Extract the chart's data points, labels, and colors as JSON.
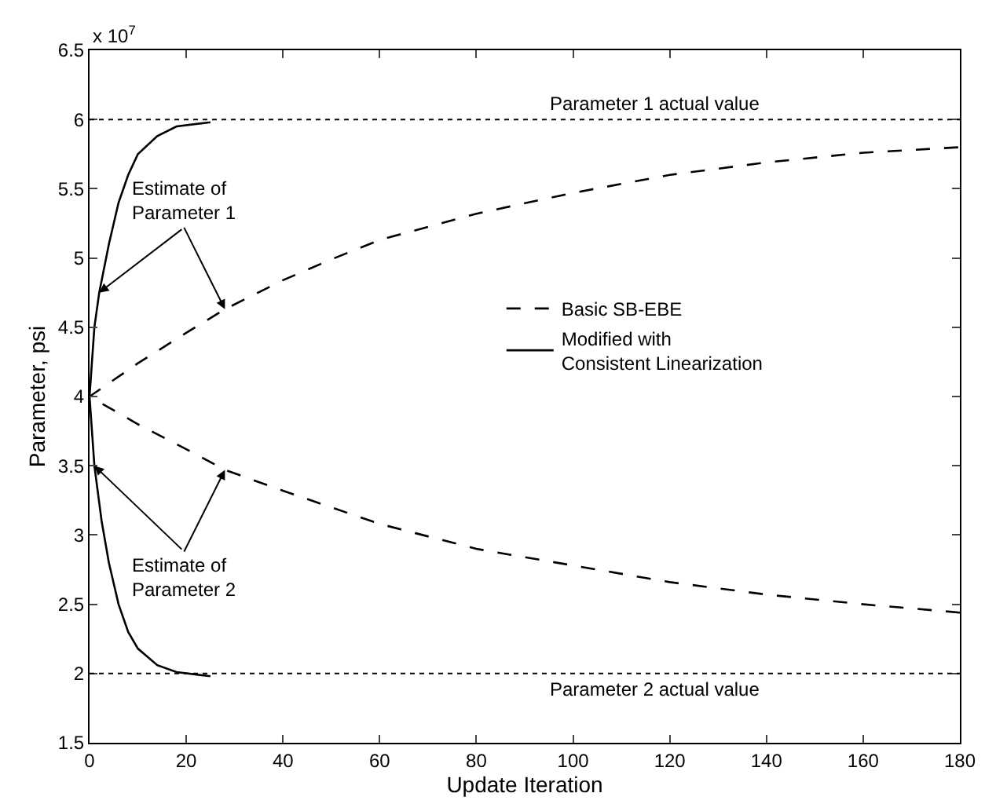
{
  "chart_data": {
    "type": "line",
    "xlabel": "Update Iteration",
    "ylabel": "Parameter, psi",
    "xlim": [
      0,
      180
    ],
    "xticks": [
      0,
      20,
      40,
      60,
      80,
      100,
      120,
      140,
      160,
      180
    ],
    "ylim": [
      1.5,
      6.5
    ],
    "yticks": [
      1.5,
      2,
      2.5,
      3,
      3.5,
      4,
      4.5,
      5,
      5.5,
      6,
      6.5
    ],
    "grid": false,
    "legend": "right",
    "series": [
      {
        "name": "Basic SB-EBE",
        "color": "#000000",
        "line_style": "dashed",
        "x": [
          180,
          160,
          140,
          120,
          100,
          80,
          60,
          40,
          28,
          20,
          10,
          0,
          10,
          20,
          28,
          40,
          50,
          60,
          80,
          100,
          120,
          140,
          160,
          180
        ],
        "values": [
          2.44,
          2.5,
          2.57,
          2.66,
          2.78,
          2.9,
          3.08,
          3.32,
          3.47,
          3.62,
          3.8,
          4,
          4.24,
          4.46,
          4.63,
          4.84,
          4.99,
          5.13,
          5.32,
          5.47,
          5.6,
          5.69,
          5.76,
          5.8
        ]
      },
      {
        "name": "Modified with\nConsistent Linearization",
        "color": "#000000",
        "line_style": "solid",
        "x": [
          25,
          18,
          14,
          10,
          8,
          6,
          4,
          2.5,
          1,
          0,
          1,
          2,
          4,
          6,
          8,
          10,
          14,
          18,
          25
        ],
        "values": [
          1.98,
          2.01,
          2.06,
          2.18,
          2.3,
          2.5,
          2.8,
          3.1,
          3.5,
          4,
          4.5,
          4.75,
          5.1,
          5.4,
          5.6,
          5.75,
          5.88,
          5.95,
          5.98
        ]
      }
    ],
    "ref_lines": [
      {
        "axis": "y",
        "value": 6,
        "label": "Parameter 1 actual value",
        "line_style": "dotted",
        "color": "#000000"
      },
      {
        "axis": "y",
        "value": 2,
        "label": "Parameter 2 actual value",
        "line_style": "dotted",
        "color": "#000000"
      }
    ],
    "annotations": [
      {
        "text": "Estimate of\nParameter 1",
        "x": 28,
        "y": 4.63
      },
      {
        "text": "Estimate of\nParameter 2",
        "x": 28,
        "y": 3.47
      },
      "x 10$^{7}$"
    ]
  }
}
